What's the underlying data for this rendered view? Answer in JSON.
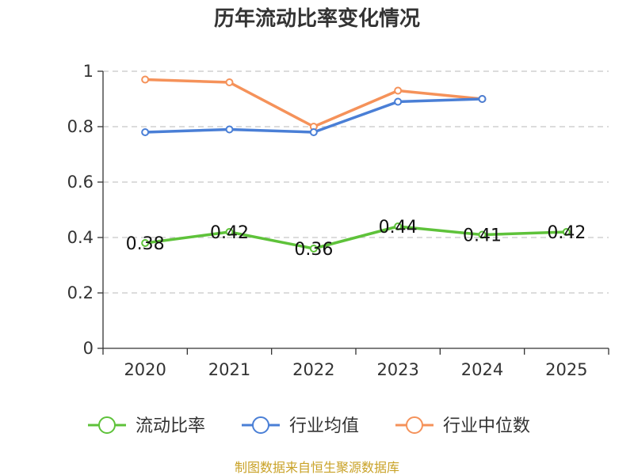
{
  "chart_data": {
    "type": "line",
    "title": "历年流动比率变化情况",
    "categories": [
      "2020",
      "2021",
      "2022",
      "2023",
      "2024",
      "2025"
    ],
    "ylim": [
      0,
      1
    ],
    "yticks": [
      0,
      0.2,
      0.4,
      0.6,
      0.8,
      1
    ],
    "ytick_labels": [
      "0",
      "0.2",
      "0.4",
      "0.6",
      "0.8",
      "1"
    ],
    "grid": true,
    "legend_position": "bottom",
    "series": [
      {
        "name": "流动比率",
        "color": "#5ec23a",
        "values": [
          0.38,
          0.42,
          0.36,
          0.44,
          0.41,
          0.42
        ],
        "labels": [
          "0.38",
          "0.42",
          "0.36",
          "0.44",
          "0.41",
          "0.42"
        ],
        "show_labels": true
      },
      {
        "name": "行业均值",
        "color": "#4a7fd6",
        "values": [
          0.78,
          0.79,
          0.78,
          0.89,
          0.9,
          null
        ],
        "show_labels": false
      },
      {
        "name": "行业中位数",
        "color": "#f5925a",
        "values": [
          0.97,
          0.96,
          0.8,
          0.93,
          0.9,
          null
        ],
        "show_labels": false
      }
    ]
  },
  "source": {
    "text": "制图数据来自恒生聚源数据库",
    "color": "#c9a227"
  }
}
